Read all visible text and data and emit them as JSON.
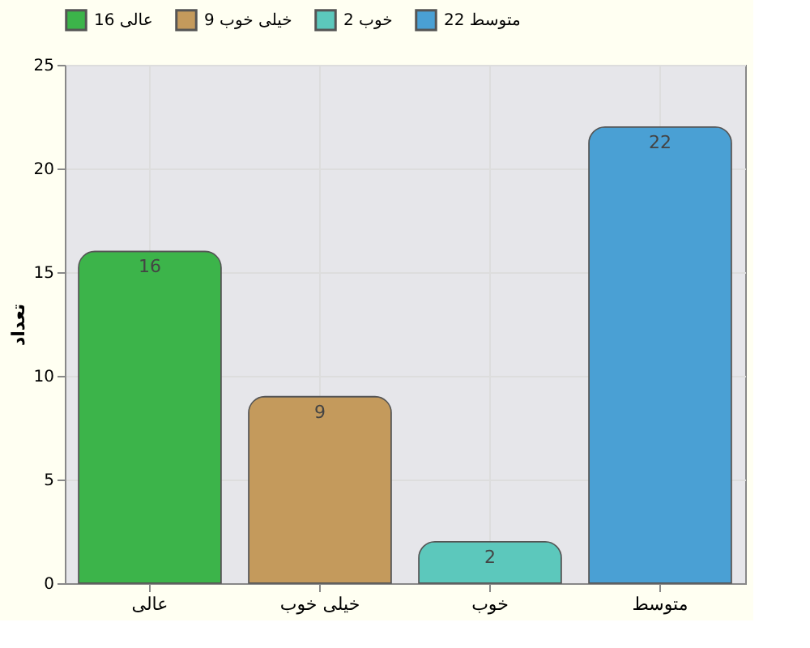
{
  "chart_data": {
    "type": "bar",
    "ylabel": "تعداد",
    "categories": [
      "عالی",
      "خیلی خوب",
      "خوب",
      "متوسط"
    ],
    "series": [
      {
        "name": "عالی 16",
        "color": "#3cb44a",
        "values": [
          16,
          null,
          null,
          null
        ]
      },
      {
        "name": "خیلی خوب 9",
        "color": "#c49a5c",
        "values": [
          null,
          9,
          null,
          null
        ]
      },
      {
        "name": "خوب 2",
        "color": "#5cc8bc",
        "values": [
          null,
          null,
          2,
          null
        ]
      },
      {
        "name": "متوسط 22",
        "color": "#4aa0d4",
        "values": [
          null,
          null,
          null,
          22
        ]
      }
    ],
    "ylim": [
      0,
      25
    ],
    "yticks": [
      0,
      5,
      10,
      15,
      20,
      25
    ],
    "grid": true,
    "legend": "top",
    "data_labels": true
  }
}
